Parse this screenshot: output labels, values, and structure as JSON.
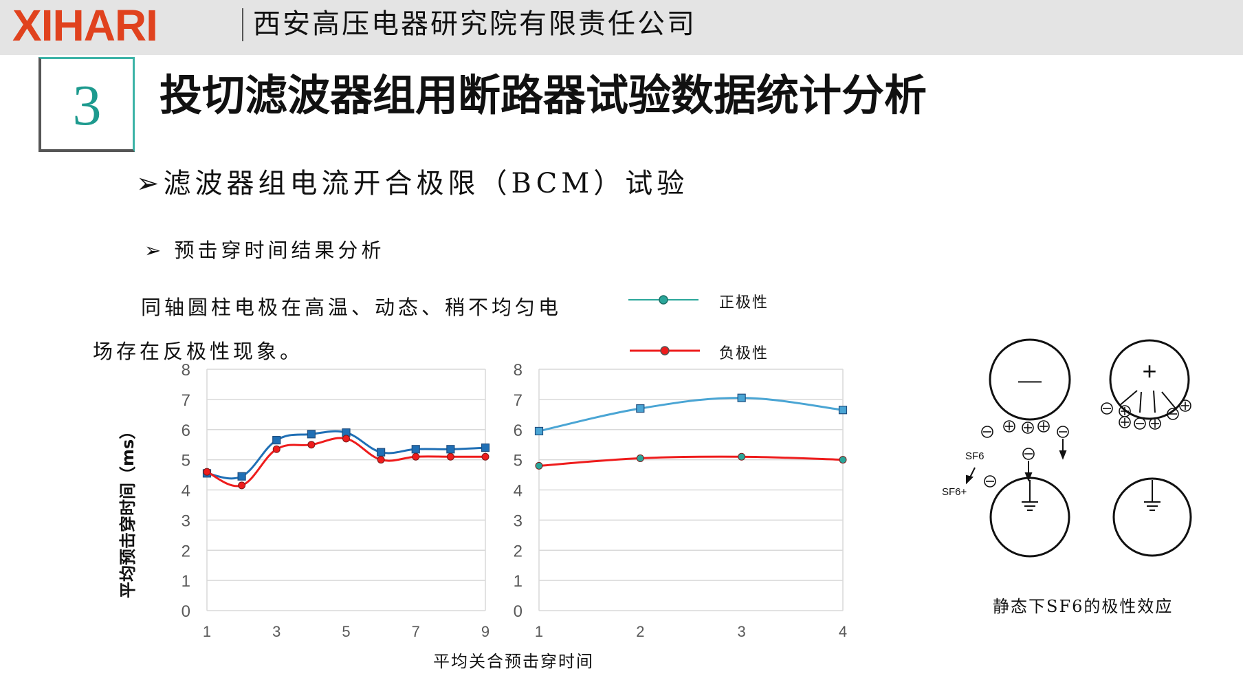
{
  "header": {
    "logo": "XIHARI",
    "company": "西安高压电器研究院有限责任公司"
  },
  "section": {
    "number": "3",
    "title": "投切滤波器组用断路器试验数据统计分析"
  },
  "subtitle": "➢滤波器组电流开合极限（BCM）试验",
  "subheading": "➢  预击穿时间结果分析",
  "paragraph": "同轴圆柱电极在高温、动态、稍不均匀电场存在反极性现象。",
  "legend": [
    {
      "label": "正极性",
      "color": "#2aa69a"
    },
    {
      "label": "负极性",
      "color": "#ee1c1c"
    }
  ],
  "chart_data": [
    {
      "type": "line",
      "ylabel": "平均预击穿时间（ms）",
      "x_ticks": [
        "1",
        "3",
        "5",
        "7",
        "9"
      ],
      "y_ticks": [
        "0",
        "1",
        "2",
        "3",
        "4",
        "5",
        "6",
        "7",
        "8"
      ],
      "xlim": [
        1,
        9
      ],
      "ylim": [
        0,
        8
      ],
      "grid": true,
      "series": [
        {
          "color": "#1f6fb5",
          "marker": "square",
          "x": [
            1,
            2,
            3,
            4,
            5,
            6,
            7,
            8,
            9
          ],
          "y": [
            4.55,
            4.45,
            5.65,
            5.85,
            5.9,
            5.25,
            5.35,
            5.35,
            5.4
          ]
        },
        {
          "color": "#ee1c1c",
          "marker": "circle",
          "x": [
            1,
            2,
            3,
            4,
            5,
            6,
            7,
            8,
            9
          ],
          "y": [
            4.6,
            4.15,
            5.35,
            5.5,
            5.7,
            5.0,
            5.1,
            5.1,
            5.1
          ]
        }
      ]
    },
    {
      "type": "line",
      "xlabel": "平均关合预击穿时间",
      "x_ticks": [
        "1",
        "2",
        "3",
        "4"
      ],
      "y_ticks": [
        "0",
        "1",
        "2",
        "3",
        "4",
        "5",
        "6",
        "7",
        "8"
      ],
      "xlim": [
        1,
        4
      ],
      "ylim": [
        0,
        8
      ],
      "grid": true,
      "series": [
        {
          "color": "#4aa5d4",
          "marker": "square",
          "x": [
            1,
            2,
            3,
            4
          ],
          "y": [
            5.95,
            6.7,
            7.05,
            6.65
          ]
        },
        {
          "color": "#ee1c1c",
          "marker": "circle",
          "x": [
            1,
            2,
            3,
            4
          ],
          "y": [
            4.8,
            5.05,
            5.1,
            5.0
          ]
        }
      ]
    }
  ],
  "diagram": {
    "caption": "静态下SF6的极性效应",
    "labels": {
      "minus": "—",
      "plus": "+",
      "sf6_a": "SF6",
      "sf6_b": "SF6+"
    }
  }
}
